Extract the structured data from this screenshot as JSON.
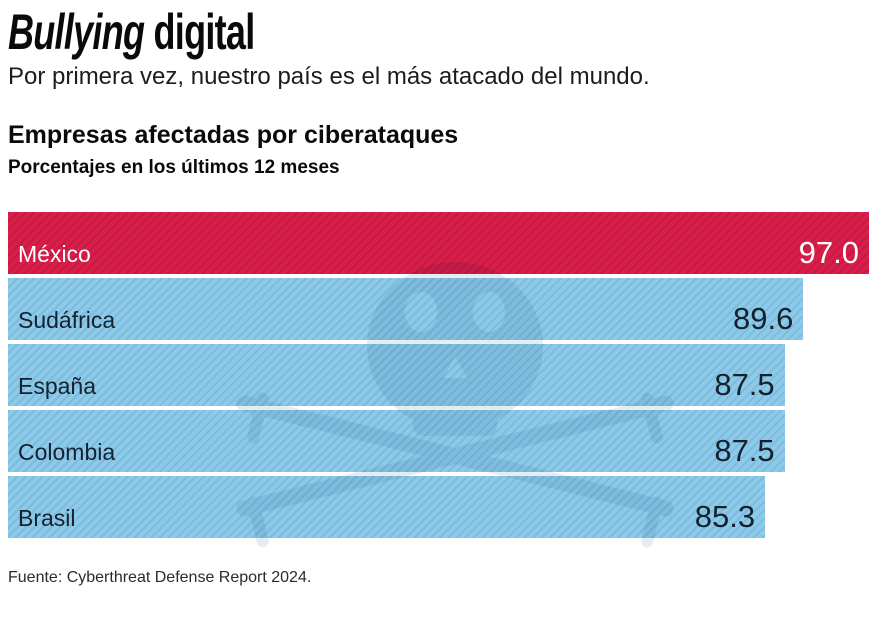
{
  "header": {
    "title_italic": "Bullying",
    "title_regular": "digital",
    "subtitle": "Por primera vez, nuestro país es el más atacado del mundo."
  },
  "chart_data": {
    "type": "bar",
    "orientation": "horizontal",
    "title": "Empresas afectadas por ciberataques",
    "subtitle": "Porcentajes en los últimos 12 meses",
    "categories": [
      "México",
      "Sudáfrica",
      "España",
      "Colombia",
      "Brasil"
    ],
    "values": [
      97.0,
      89.6,
      87.5,
      87.5,
      85.3
    ],
    "value_labels": [
      "97.0",
      "89.6",
      "87.5",
      "87.5",
      "85.3"
    ],
    "highlight_index": 0,
    "xlim": [
      0,
      97
    ],
    "grid": false,
    "legend": "none",
    "colors": {
      "highlight_bar": "#d91e4a",
      "default_bar": "#8dcae9",
      "highlight_text": "#ffffff",
      "default_text": "#13222e"
    },
    "texture": "diagonal-stripes",
    "watermark": "pirate-skull-crossed-swords"
  },
  "footer": {
    "source": "Fuente: Cyberthreat Defense Report 2024."
  }
}
